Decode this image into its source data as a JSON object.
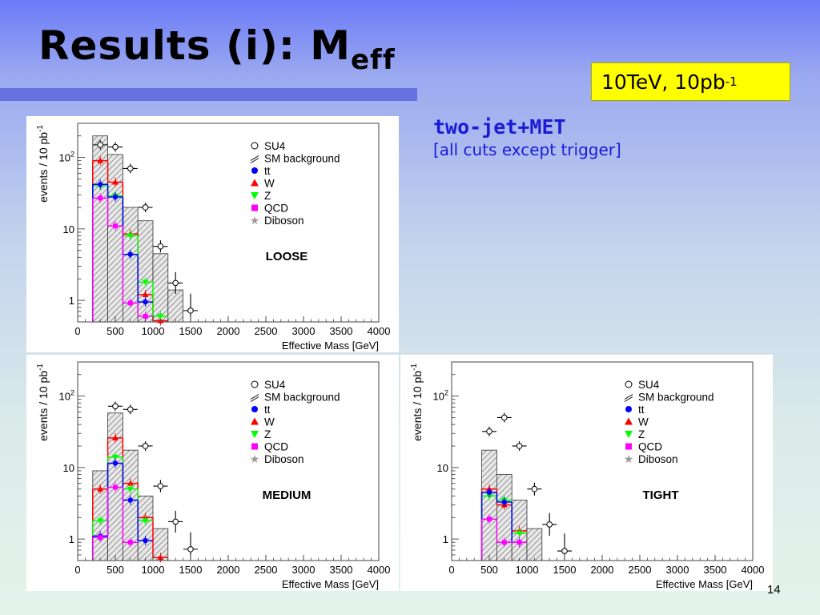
{
  "title": {
    "main": "Results (i): M",
    "subscript": "eff"
  },
  "energy_badge": {
    "text": "10TeV, 10pb",
    "superscript": "-1"
  },
  "selection": {
    "main": "two-jet+MET",
    "sub": "[all cuts except trigger]"
  },
  "slide_number": "14",
  "colors": {
    "title_bar": "#6672e0",
    "badge_bg": "#ffff00",
    "selection_text": "#1a1ad8",
    "tt": "#0000ff",
    "W": "#ff0000",
    "Z": "#00ff00",
    "QCD": "#ff00ff",
    "Diboson": "#999999",
    "background_hatch": "#808080"
  },
  "chart_data": [
    {
      "type": "bar",
      "panel_label": "LOOSE",
      "xlabel": "Effective Mass [GeV]",
      "ylabel": "events / 10 pb",
      "ylabel_sup": "-1",
      "xlim": [
        0,
        4000
      ],
      "ylim": [
        0.5,
        300
      ],
      "yscale": "log",
      "x_ticks": [
        "0",
        "500",
        "1000",
        "1500",
        "2000",
        "2500",
        "3000",
        "3500",
        "4000"
      ],
      "y_ticks": [
        {
          "value": 1,
          "label": "1"
        },
        {
          "value": 10,
          "label": "10"
        },
        {
          "value": 100,
          "label": "10",
          "sup": "2"
        }
      ],
      "legend": {
        "placement": "top-right",
        "entries": [
          {
            "label": "SU4",
            "marker": "open-circle"
          },
          {
            "label": "SM background",
            "marker": "hatch"
          },
          {
            "label": "tt",
            "marker": "circle",
            "color": "#0000ff"
          },
          {
            "label": "W",
            "marker": "triangle-up",
            "color": "#ff0000"
          },
          {
            "label": "Z",
            "marker": "triangle-down",
            "color": "#00ff00"
          },
          {
            "label": "QCD",
            "marker": "square",
            "color": "#ff00ff"
          },
          {
            "label": "Diboson",
            "marker": "star",
            "color": "#999999"
          }
        ]
      },
      "bin_edges": [
        200,
        400,
        600,
        800,
        1000,
        1200,
        1400
      ],
      "background": [
        200,
        110,
        20,
        13,
        4.5,
        1.4
      ],
      "series": [
        {
          "name": "W",
          "color": "#ff0000",
          "values": [
            90,
            45,
            8.5,
            1.2,
            0.52,
            null
          ]
        },
        {
          "name": "Z",
          "color": "#00ff00",
          "values": [
            40,
            29,
            8,
            1.8,
            0.6,
            null
          ]
        },
        {
          "name": "tt",
          "color": "#0000ff",
          "values": [
            42,
            28,
            4.4,
            0.95,
            null,
            null
          ]
        },
        {
          "name": "QCD",
          "color": "#ff00ff",
          "values": [
            27,
            11,
            0.92,
            0.6,
            null,
            null
          ]
        }
      ],
      "su4": {
        "x": [
          300,
          500,
          700,
          900,
          1100,
          1300,
          1500
        ],
        "y": [
          150,
          140,
          70,
          20,
          5.7,
          1.75,
          0.72
        ]
      }
    },
    {
      "type": "bar",
      "panel_label": "MEDIUM",
      "xlabel": "Effective Mass [GeV]",
      "ylabel": "events / 10 pb",
      "ylabel_sup": "-1",
      "xlim": [
        0,
        4000
      ],
      "ylim": [
        0.5,
        300
      ],
      "yscale": "log",
      "x_ticks": [
        "0",
        "500",
        "1000",
        "1500",
        "2000",
        "2500",
        "3000",
        "3500",
        "4000"
      ],
      "y_ticks": [
        {
          "value": 1,
          "label": "1"
        },
        {
          "value": 10,
          "label": "10"
        },
        {
          "value": 100,
          "label": "10",
          "sup": "2"
        }
      ],
      "legend": {
        "placement": "top-right",
        "entries": [
          {
            "label": "SU4",
            "marker": "open-circle"
          },
          {
            "label": "SM background",
            "marker": "hatch"
          },
          {
            "label": "tt",
            "marker": "circle",
            "color": "#0000ff"
          },
          {
            "label": "W",
            "marker": "triangle-up",
            "color": "#ff0000"
          },
          {
            "label": "Z",
            "marker": "triangle-down",
            "color": "#00ff00"
          },
          {
            "label": "QCD",
            "marker": "square",
            "color": "#ff00ff"
          },
          {
            "label": "Diboson",
            "marker": "star",
            "color": "#999999"
          }
        ]
      },
      "bin_edges": [
        200,
        400,
        600,
        800,
        1000,
        1200,
        1400
      ],
      "background": [
        9,
        58,
        17.5,
        4,
        1.4,
        null
      ],
      "series": [
        {
          "name": "W",
          "color": "#ff0000",
          "values": [
            5,
            26,
            6,
            2,
            0.55,
            null
          ]
        },
        {
          "name": "Z",
          "color": "#00ff00",
          "values": [
            1.8,
            14,
            5,
            1.8,
            null,
            null
          ]
        },
        {
          "name": "tt",
          "color": "#0000ff",
          "values": [
            1.1,
            11.5,
            3.5,
            0.95,
            null,
            null
          ]
        },
        {
          "name": "QCD",
          "color": "#ff00ff",
          "values": [
            1.05,
            5.3,
            0.9,
            null,
            null,
            null
          ]
        }
      ],
      "su4": {
        "x": [
          300,
          500,
          700,
          900,
          1100,
          1300,
          1500
        ],
        "y": [
          null,
          72,
          65,
          20,
          5.5,
          1.75,
          0.72
        ]
      }
    },
    {
      "type": "bar",
      "panel_label": "TIGHT",
      "xlabel": "Effective Mass [GeV]",
      "ylabel": "events / 10 pb",
      "ylabel_sup": "-1",
      "xlim": [
        0,
        4000
      ],
      "ylim": [
        0.5,
        300
      ],
      "yscale": "log",
      "x_ticks": [
        "0",
        "500",
        "1000",
        "1500",
        "2000",
        "2500",
        "3000",
        "3500",
        "4000"
      ],
      "y_ticks": [
        {
          "value": 1,
          "label": "1"
        },
        {
          "value": 10,
          "label": "10"
        },
        {
          "value": 100,
          "label": "10",
          "sup": "2"
        }
      ],
      "legend": {
        "placement": "top-right",
        "entries": [
          {
            "label": "SU4",
            "marker": "open-circle"
          },
          {
            "label": "SM background",
            "marker": "hatch"
          },
          {
            "label": "tt",
            "marker": "circle",
            "color": "#0000ff"
          },
          {
            "label": "W",
            "marker": "triangle-up",
            "color": "#ff0000"
          },
          {
            "label": "Z",
            "marker": "triangle-down",
            "color": "#00ff00"
          },
          {
            "label": "QCD",
            "marker": "square",
            "color": "#ff00ff"
          },
          {
            "label": "Diboson",
            "marker": "star",
            "color": "#999999"
          }
        ]
      },
      "bin_edges": [
        400,
        600,
        800,
        1000,
        1200
      ],
      "background": [
        17.5,
        8,
        3.5,
        1.4
      ],
      "series": [
        {
          "name": "W",
          "color": "#ff0000",
          "values": [
            5,
            3,
            1.3,
            null
          ]
        },
        {
          "name": "Z",
          "color": "#00ff00",
          "values": [
            4,
            3.5,
            1.2,
            null
          ]
        },
        {
          "name": "tt",
          "color": "#0000ff",
          "values": [
            4.5,
            3.3,
            0.9,
            null
          ]
        },
        {
          "name": "QCD",
          "color": "#ff00ff",
          "values": [
            1.9,
            0.9,
            0.9,
            null
          ]
        }
      ],
      "su4": {
        "x": [
          500,
          700,
          900,
          1100,
          1300,
          1500
        ],
        "y": [
          32,
          50,
          20,
          5,
          1.6,
          0.68
        ]
      }
    }
  ]
}
